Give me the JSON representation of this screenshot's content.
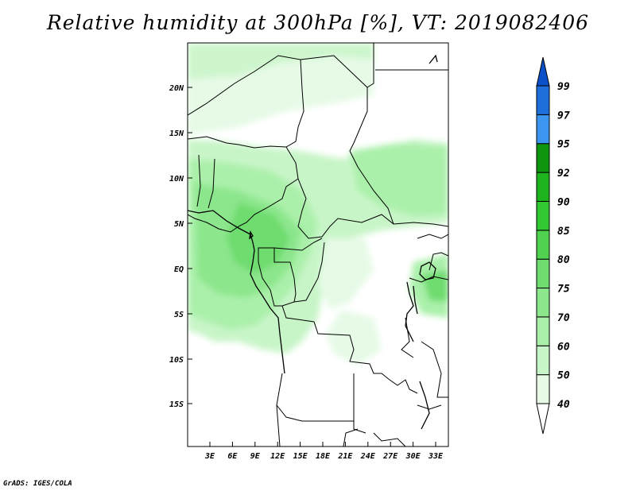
{
  "title": "Relative humidity at 300hPa [%], VT: 2019082406",
  "credit": "GrADS: IGES/COLA",
  "map": {
    "lat_labels": [
      "20N",
      "15N",
      "10N",
      "5N",
      "EQ",
      "5S",
      "10S",
      "15S"
    ],
    "lon_labels": [
      "3E",
      "6E",
      "9E",
      "12E",
      "15E",
      "18E",
      "21E",
      "24E",
      "27E",
      "30E",
      "33E"
    ]
  },
  "colorbar": {
    "levels": [
      "40",
      "50",
      "60",
      "70",
      "75",
      "80",
      "85",
      "90",
      "92",
      "95",
      "97",
      "99"
    ],
    "colors": [
      "#ffffff",
      "#e6fae6",
      "#c8f5c8",
      "#aaf0aa",
      "#8ce68c",
      "#6edc6e",
      "#50d250",
      "#32c832",
      "#1eb41e",
      "#0f960f",
      "#3c96f0",
      "#1e6edc",
      "#0a50c8"
    ]
  }
}
